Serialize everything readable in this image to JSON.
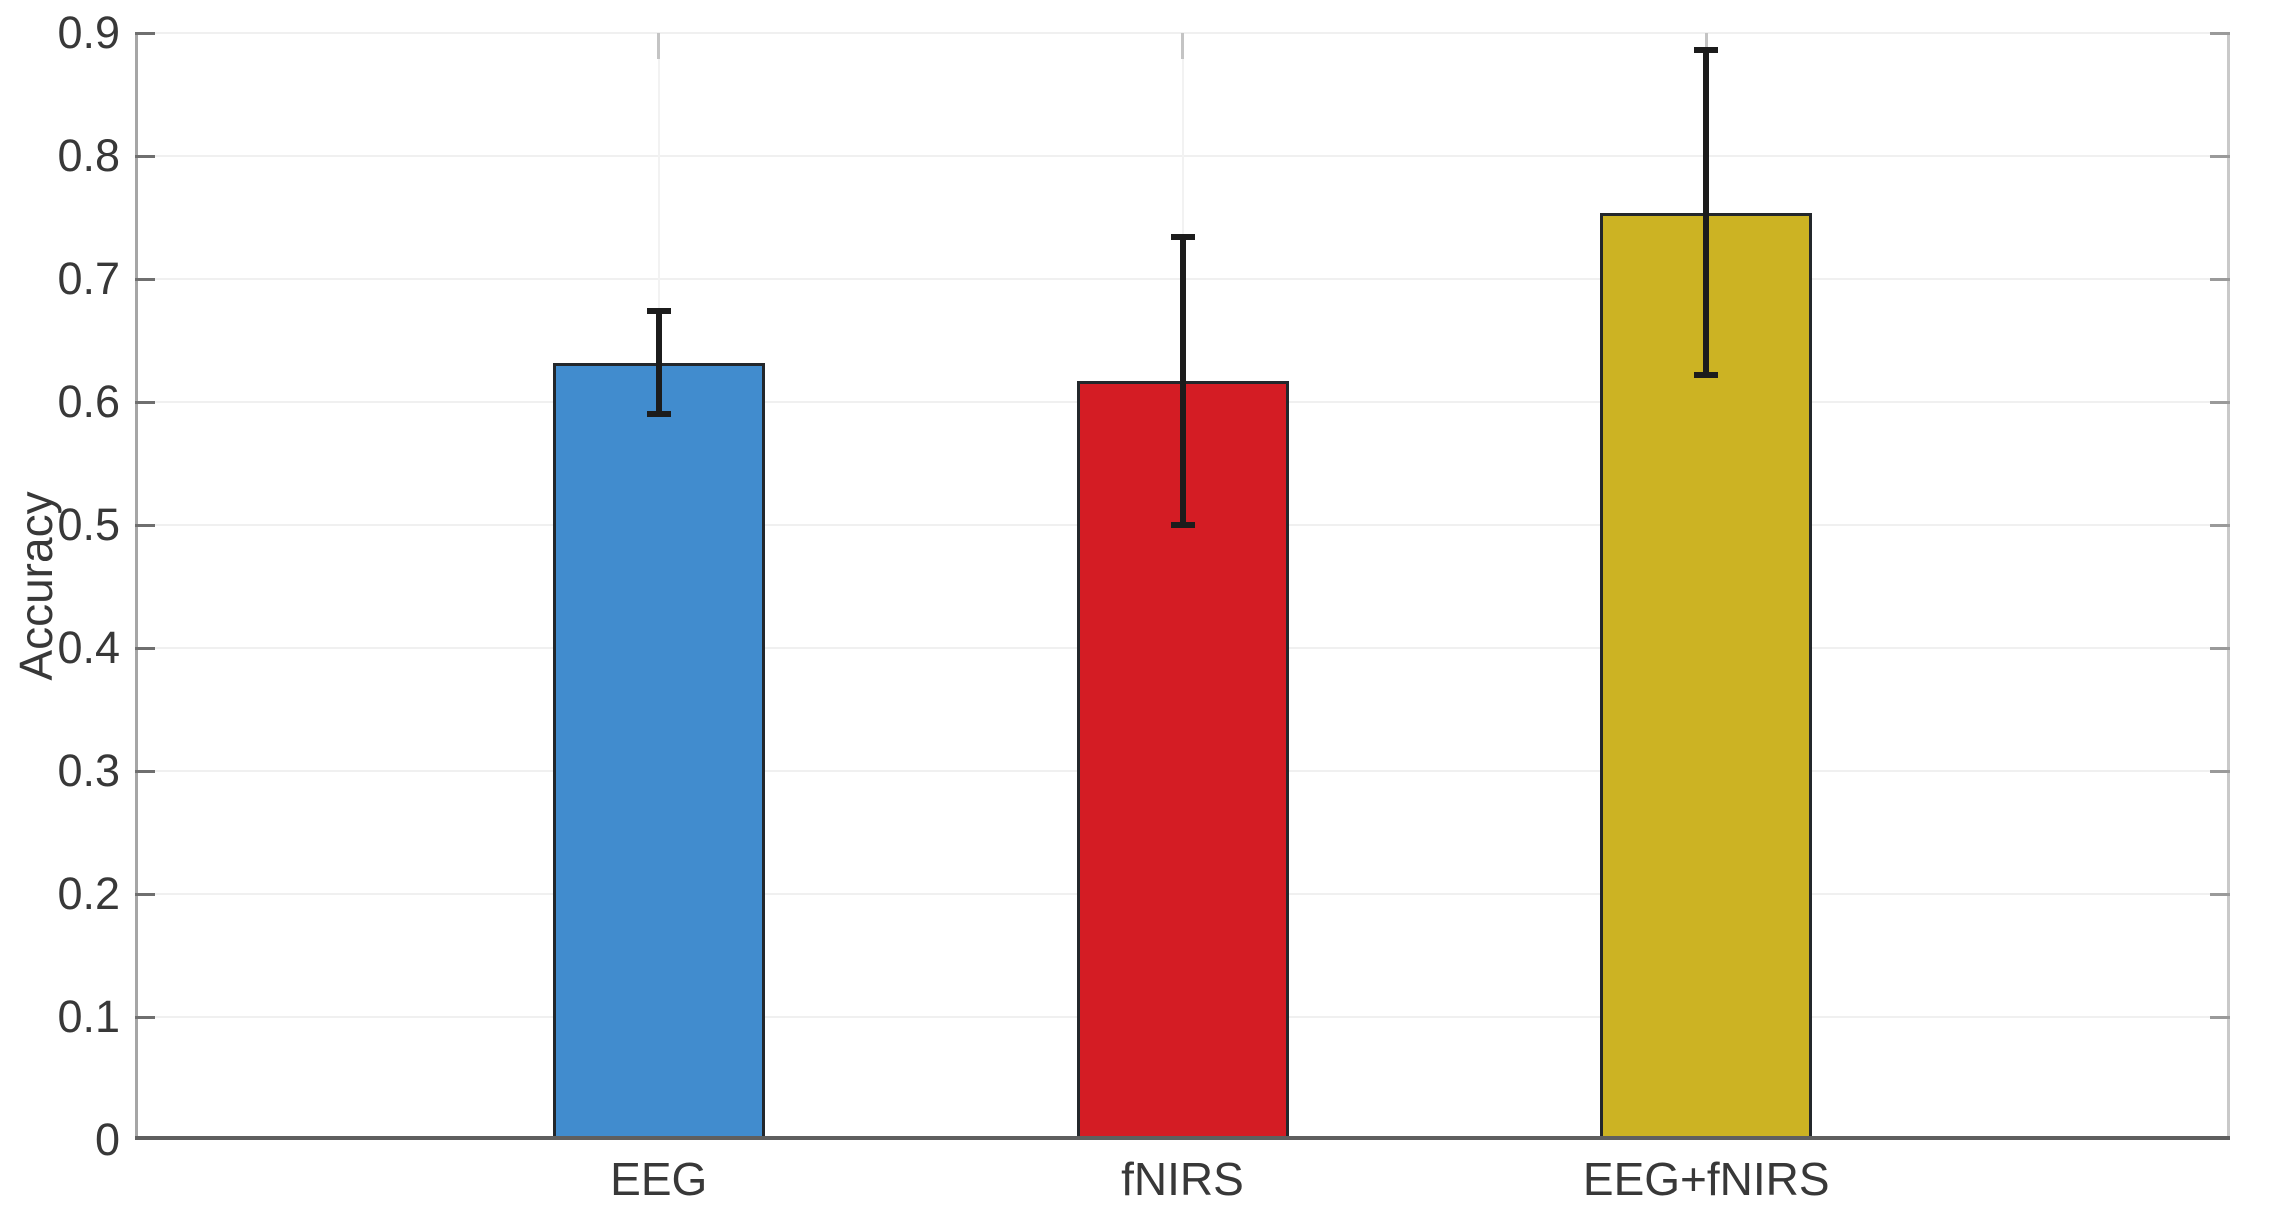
{
  "chart_data": {
    "type": "bar",
    "title": "",
    "xlabel": "",
    "ylabel": "Accuracy",
    "ylim": [
      0,
      0.9
    ],
    "yticks": [
      0,
      0.1,
      0.2,
      0.3,
      0.4,
      0.5,
      0.6,
      0.7,
      0.8,
      0.9
    ],
    "ytick_labels": [
      "0",
      "0.1",
      "0.2",
      "0.3",
      "0.4",
      "0.5",
      "0.6",
      "0.7",
      "0.8",
      "0.9"
    ],
    "grid": true,
    "legend": false,
    "categories": [
      "EEG",
      "fNIRS",
      "EEG+fNIRS"
    ],
    "series": [
      {
        "name": "Accuracy",
        "values": [
          0.632,
          0.617,
          0.754
        ],
        "error_low": [
          0.59,
          0.5,
          0.622
        ],
        "error_high": [
          0.674,
          0.734,
          0.886
        ]
      }
    ],
    "bar_colors": [
      "#418CCE",
      "#D41C24",
      "#CCB323"
    ],
    "error_bar_color": "#1C1C1C",
    "grid_color": "#F0F0F0",
    "axis_color_left": "#A6A6A6",
    "axis_color_bottom": "#5F5F5F",
    "text_color": "#383838",
    "background_color": "#FFFFFF"
  }
}
